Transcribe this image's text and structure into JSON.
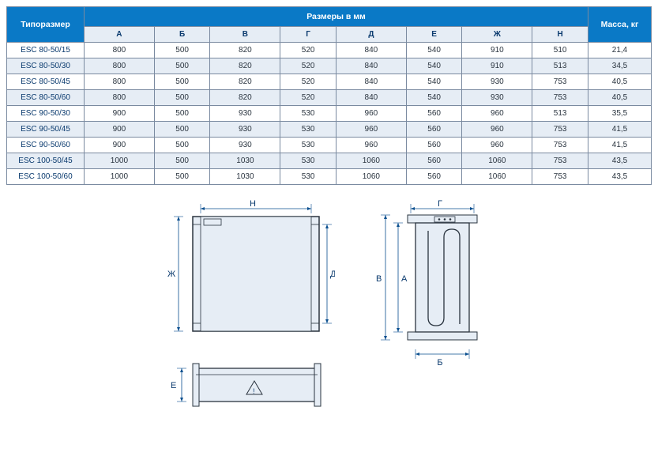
{
  "table": {
    "header": {
      "col1": "Типоразмер",
      "dims_header": "Размеры в мм",
      "mass": "Масса, кг",
      "cols": [
        "А",
        "Б",
        "В",
        "Г",
        "Д",
        "Е",
        "Ж",
        "Н"
      ]
    },
    "rows": [
      {
        "model": "ESC 80-50/15",
        "v": [
          "800",
          "500",
          "820",
          "520",
          "840",
          "540",
          "910",
          "510"
        ],
        "m": "21,4"
      },
      {
        "model": "ESC 80-50/30",
        "v": [
          "800",
          "500",
          "820",
          "520",
          "840",
          "540",
          "910",
          "513"
        ],
        "m": "34,5"
      },
      {
        "model": "ESC 80-50/45",
        "v": [
          "800",
          "500",
          "820",
          "520",
          "840",
          "540",
          "930",
          "753"
        ],
        "m": "40,5"
      },
      {
        "model": "ESC 80-50/60",
        "v": [
          "800",
          "500",
          "820",
          "520",
          "840",
          "540",
          "930",
          "753"
        ],
        "m": "40,5"
      },
      {
        "model": "ESC 90-50/30",
        "v": [
          "900",
          "500",
          "930",
          "530",
          "960",
          "560",
          "960",
          "513"
        ],
        "m": "35,5"
      },
      {
        "model": "ESC 90-50/45",
        "v": [
          "900",
          "500",
          "930",
          "530",
          "960",
          "560",
          "960",
          "753"
        ],
        "m": "41,5"
      },
      {
        "model": "ESC 90-50/60",
        "v": [
          "900",
          "500",
          "930",
          "530",
          "960",
          "560",
          "960",
          "753"
        ],
        "m": "41,5"
      },
      {
        "model": "ESC 100-50/45",
        "v": [
          "1000",
          "500",
          "1030",
          "530",
          "1060",
          "560",
          "1060",
          "753"
        ],
        "m": "43,5"
      },
      {
        "model": "ESC 100-50/60",
        "v": [
          "1000",
          "500",
          "1030",
          "530",
          "1060",
          "560",
          "1060",
          "753"
        ],
        "m": "43,5"
      }
    ]
  },
  "drawing_labels": {
    "H": "Н",
    "Zh": "Ж",
    "D": "Д",
    "E": "Е",
    "G": "Г",
    "V": "В",
    "A": "А",
    "B": "Б"
  },
  "styling": {
    "hdr_bg": "#0a79c6",
    "hdr_fg": "#ffffff",
    "sub_bg": "#e6edf5",
    "sub_fg": "#0a3a6e",
    "cell_fg": "#2a343f",
    "border": "#7a8aa0",
    "row_alt_bg": "#e6edf5",
    "diagram_fill": "#e6edf5",
    "diagram_dark": "#2a343f",
    "diagram_blue": "#0a4f8f",
    "table_font": 10,
    "hdr_font": 10.5,
    "label_font": 11
  }
}
